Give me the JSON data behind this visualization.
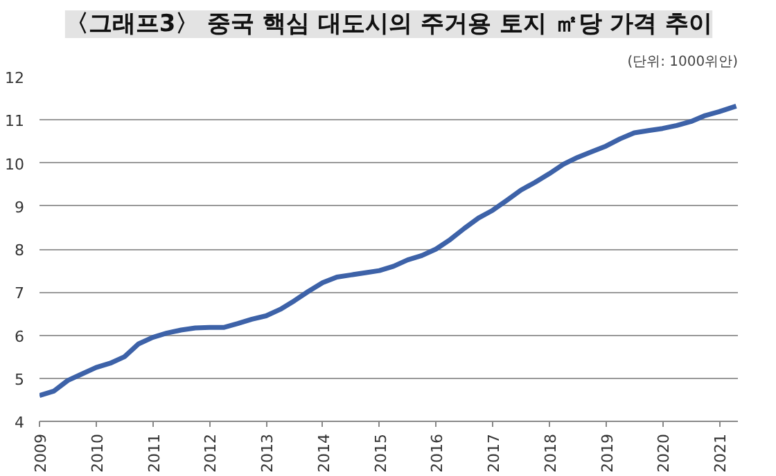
{
  "chart_data": {
    "type": "line",
    "title": "〈그래프3〉 중국 핵심 대도시의 주거용 토지 ㎡당 가격 추이",
    "subtitle": "(단위: 1000위안)",
    "x": [
      2009,
      2009.25,
      2009.5,
      2009.75,
      2010,
      2010.25,
      2010.5,
      2010.75,
      2011,
      2011.25,
      2011.5,
      2011.75,
      2012,
      2012.25,
      2012.5,
      2012.75,
      2013,
      2013.25,
      2013.5,
      2013.75,
      2014,
      2014.25,
      2014.5,
      2014.75,
      2015,
      2015.25,
      2015.5,
      2015.75,
      2016,
      2016.25,
      2016.5,
      2016.75,
      2017,
      2017.25,
      2017.5,
      2017.75,
      2018,
      2018.25,
      2018.5,
      2018.75,
      2019,
      2019.25,
      2019.5,
      2019.75,
      2020,
      2020.25,
      2020.5,
      2020.75,
      2021,
      2021.3
    ],
    "series": [
      {
        "color": "#3d62a8",
        "values": [
          4.6,
          4.7,
          4.95,
          5.1,
          5.25,
          5.35,
          5.5,
          5.8,
          5.95,
          6.05,
          6.12,
          6.17,
          6.18,
          6.18,
          6.27,
          6.37,
          6.45,
          6.6,
          6.8,
          7.02,
          7.22,
          7.35,
          7.4,
          7.45,
          7.5,
          7.6,
          7.75,
          7.85,
          8.0,
          8.22,
          8.48,
          8.72,
          8.9,
          9.13,
          9.37,
          9.55,
          9.75,
          9.97,
          10.13,
          10.26,
          10.39,
          10.56,
          10.7,
          10.75,
          10.8,
          10.87,
          10.96,
          11.1,
          11.19,
          11.32
        ]
      }
    ],
    "xlim": [
      2009,
      2021.33
    ],
    "xticks": [
      2009,
      2010,
      2011,
      2012,
      2013,
      2014,
      2015,
      2016,
      2017,
      2018,
      2019,
      2020,
      2021
    ],
    "ylim": [
      4,
      12
    ],
    "yticks": [
      4,
      5,
      6,
      7,
      8,
      9,
      10,
      11,
      12
    ],
    "grid": "y",
    "marker": "none",
    "line_style": "solid"
  }
}
